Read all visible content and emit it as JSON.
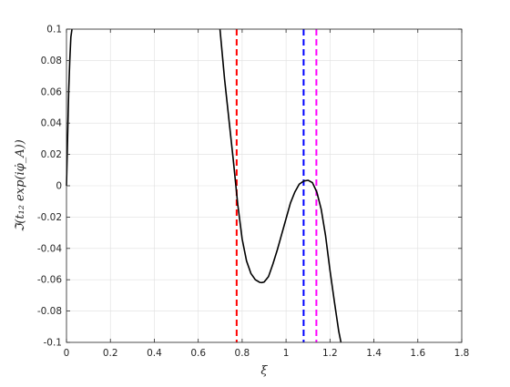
{
  "chart_data": {
    "type": "line",
    "title": "",
    "xlabel": "ξ",
    "ylabel": "ℑ(t₁₂ exp(iφ̇_A))",
    "xlim": [
      0,
      1.8
    ],
    "ylim": [
      -0.1,
      0.1
    ],
    "grid": true,
    "xticks": [
      "0",
      "0.2",
      "0.4",
      "0.6",
      "0.8",
      "1",
      "1.2",
      "1.4",
      "1.6",
      "1.8"
    ],
    "yticks": [
      "-0.1",
      "-0.08",
      "-0.06",
      "-0.04",
      "-0.02",
      "0",
      "0.02",
      "0.04",
      "0.06",
      "0.08",
      "0.1"
    ],
    "series": [
      {
        "color": "#000000",
        "segments": [
          {
            "x": [
              0.0,
              0.005,
              0.01,
              0.015,
              0.02,
              0.025
            ],
            "y": [
              0.0,
              0.03,
              0.06,
              0.08,
              0.095,
              0.1
            ]
          },
          {
            "x": [
              0.699,
              0.72,
              0.74,
              0.76,
              0.78,
              0.8,
              0.82,
              0.84,
              0.86,
              0.88,
              0.89,
              0.9,
              0.92,
              0.94,
              0.96,
              0.98,
              1.0,
              1.02,
              1.04,
              1.06,
              1.08,
              1.1,
              1.12,
              1.14,
              1.16,
              1.18,
              1.2,
              1.22,
              1.24,
              1.25
            ],
            "y": [
              0.1,
              0.068,
              0.042,
              0.016,
              -0.012,
              -0.034,
              -0.048,
              -0.056,
              -0.06,
              -0.0617,
              -0.0618,
              -0.0615,
              -0.058,
              -0.05,
              -0.041,
              -0.031,
              -0.021,
              -0.011,
              -0.004,
              0.001,
              0.003,
              0.0035,
              0.002,
              -0.004,
              -0.015,
              -0.032,
              -0.054,
              -0.074,
              -0.093,
              -0.1
            ]
          }
        ]
      }
    ],
    "vlines": [
      {
        "x": 0.775,
        "color": "#ff0000",
        "style": "dashed"
      },
      {
        "x": 1.08,
        "color": "#0000ff",
        "style": "dashed"
      },
      {
        "x": 1.138,
        "color": "#ff00ff",
        "style": "dashed"
      }
    ]
  }
}
